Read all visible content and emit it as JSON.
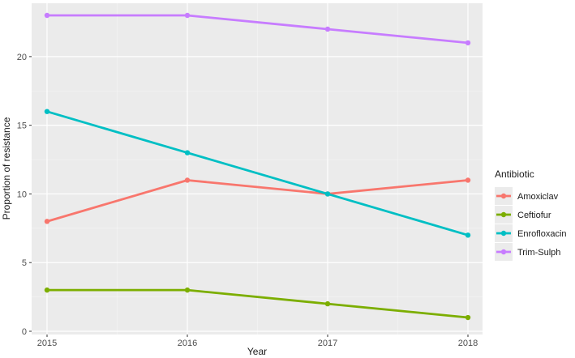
{
  "chart_data": {
    "type": "line",
    "xlabel": "Year",
    "ylabel": "Proportion of resistance",
    "x": [
      2015,
      2016,
      2017,
      2018
    ],
    "xlim": [
      2015,
      2018
    ],
    "ylim": [
      0,
      23
    ],
    "yticks": [
      0,
      5,
      10,
      15,
      20
    ],
    "grid": true,
    "legend": {
      "title": "Antibiotic",
      "position": "right"
    },
    "series": [
      {
        "name": "Amoxiclav",
        "color": "#F8766D",
        "values": [
          8,
          11,
          10,
          11
        ]
      },
      {
        "name": "Ceftiofur",
        "color": "#7CAE00",
        "values": [
          3,
          3,
          2,
          1
        ]
      },
      {
        "name": "Enrofloxacin",
        "color": "#00BFC4",
        "values": [
          16,
          13,
          10,
          7
        ]
      },
      {
        "name": "Trim-Sulph",
        "color": "#C77CFF",
        "values": [
          23,
          23,
          22,
          21
        ]
      }
    ]
  }
}
